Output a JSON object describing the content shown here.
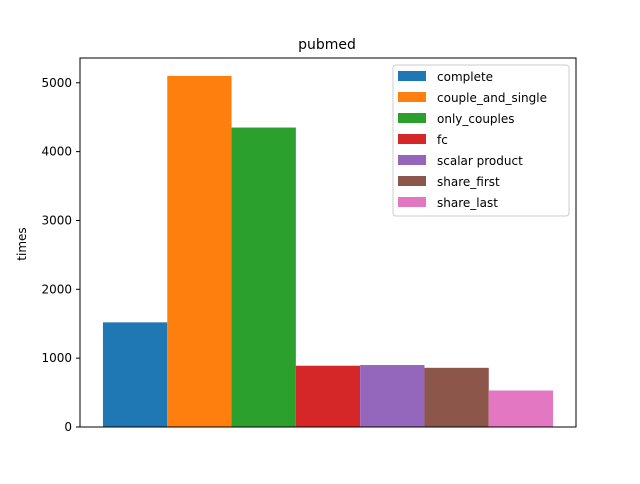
{
  "chart_data": {
    "type": "bar",
    "title": "pubmed",
    "xlabel": "",
    "ylabel": "times",
    "ylim": [
      0,
      5360
    ],
    "yticks": [
      0,
      1000,
      2000,
      3000,
      4000,
      5000
    ],
    "grid": false,
    "legend_position": "top-right",
    "series": [
      {
        "name": "complete",
        "value": 1520,
        "color": "#1f77b4"
      },
      {
        "name": "couple_and_single",
        "value": 5100,
        "color": "#ff7f0e"
      },
      {
        "name": "only_couples",
        "value": 4350,
        "color": "#2ca02c"
      },
      {
        "name": "fc",
        "value": 890,
        "color": "#d62728"
      },
      {
        "name": "scalar product",
        "value": 900,
        "color": "#9467bd"
      },
      {
        "name": "share_first",
        "value": 860,
        "color": "#8c564b"
      },
      {
        "name": "share_last",
        "value": 530,
        "color": "#e377c2"
      }
    ]
  }
}
